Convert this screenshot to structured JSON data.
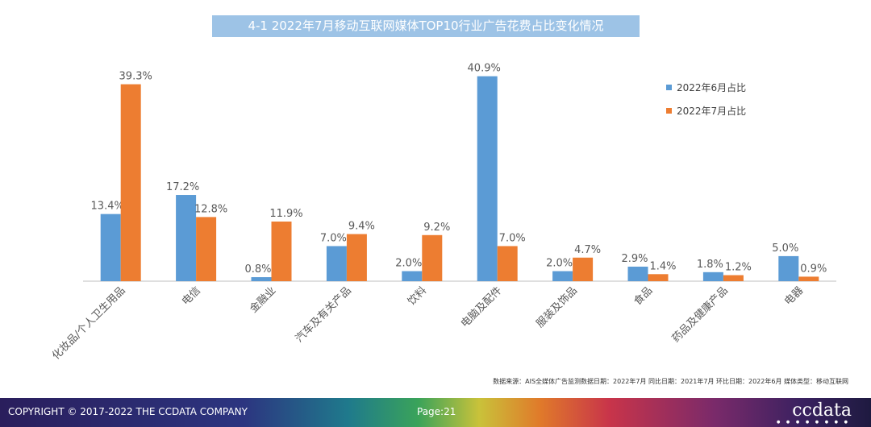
{
  "header": {
    "title": "4-1 2022年7月移动互联网媒体TOP10行业广告花费占比变化情况"
  },
  "chart_data": {
    "type": "bar",
    "title": "4-1 2022年7月移动互联网媒体TOP10行业广告花费占比变化情况",
    "categories": [
      "化妆品/个人卫生用品",
      "电信",
      "金融业",
      "汽车及有关产品",
      "饮料",
      "电脑及配件",
      "服装及饰品",
      "食品",
      "药品及健康产品",
      "电器"
    ],
    "series": [
      {
        "name": "2022年6月占比",
        "color": "#5b9bd5",
        "values": [
          13.4,
          17.2,
          0.8,
          7.0,
          2.0,
          40.9,
          2.0,
          2.9,
          1.8,
          5.0
        ]
      },
      {
        "name": "2022年7月占比",
        "color": "#ed7d31",
        "values": [
          39.3,
          12.8,
          11.9,
          9.4,
          9.2,
          7.0,
          4.7,
          1.4,
          1.2,
          0.9
        ]
      }
    ],
    "ylim": [
      0,
      41
    ],
    "value_suffix": "%",
    "grid": false,
    "legend": "top-right"
  },
  "footer": {
    "source": "数据来源：AIS全媒体广告监测数据日期：2022年7月  同比日期：2021年7月       环比日期：2022年6月  媒体类型：移动互联网",
    "copyright": "COPYRIGHT © 2017-2022 THE CCDATA COMPANY",
    "page": "Page:21",
    "logo": "ccdata",
    "logo_dots": "● ● ● ● ● ● ● ●"
  }
}
